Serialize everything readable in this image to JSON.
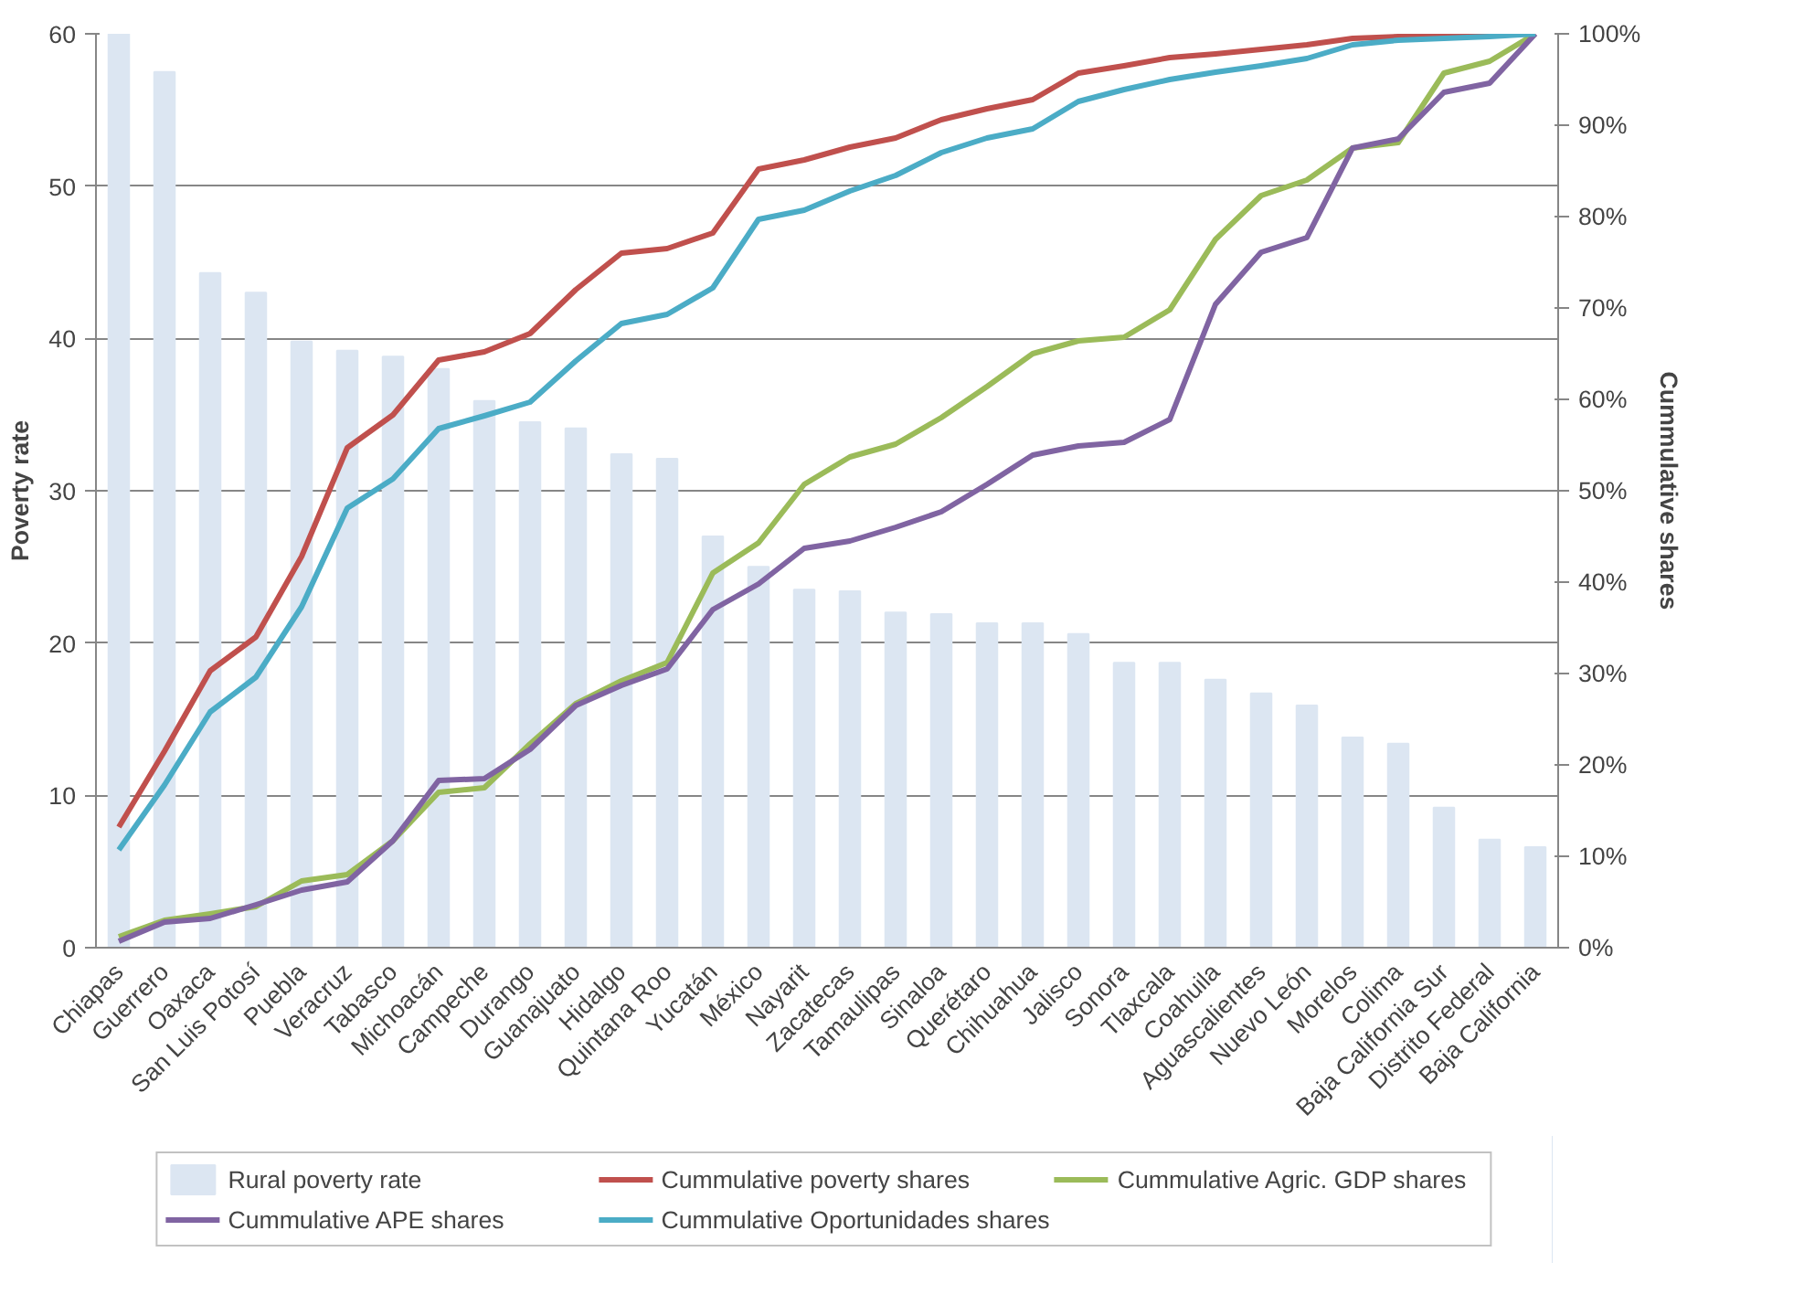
{
  "chart_data": {
    "type": "bar",
    "ylabel": "Poverty rate",
    "y2label": "Cummulative shares",
    "categories": [
      "Chiapas",
      "Guerrero",
      "Oaxaca",
      "San Luis Potosí",
      "Puebla",
      "Veracruz",
      "Tabasco",
      "Michoacán",
      "Campeche",
      "Durango",
      "Guanajuato",
      "Hidalgo",
      "Quintana Roo",
      "Yucatán",
      "México",
      "Nayarit",
      "Zacatecas",
      "Tamaulipas",
      "Sinaloa",
      "Querétaro",
      "Chihuahua",
      "Jalisco",
      "Sonora",
      "Tlaxcala",
      "Coahuila",
      "Aguascalientes",
      "Nuevo León",
      "Morelos",
      "Colima",
      "Baja California Sur",
      "Distrito Federal",
      "Baja California"
    ],
    "series": [
      {
        "name": "Rural poverty rate",
        "color": "#dce6f2",
        "values": [
          60,
          57.5,
          44.3,
          43.0,
          39.8,
          39.2,
          38.8,
          38.0,
          35.9,
          34.5,
          34.1,
          32.4,
          32.1,
          27.0,
          25.0,
          23.5,
          23.4,
          22.0,
          21.9,
          21.3,
          21.3,
          20.6,
          18.7,
          18.7,
          17.6,
          16.7,
          15.9,
          13.8,
          13.4,
          9.2,
          7.1,
          6.6
        ]
      },
      {
        "name": "Cummulative poverty shares",
        "type": "line",
        "axis": "y2",
        "color": "#c0504d",
        "values": [
          13.2,
          21.5,
          30.3,
          34,
          42.8,
          54.7,
          58.3,
          64.3,
          65.2,
          67.2,
          72,
          76,
          76.5,
          78.2,
          85.2,
          86.2,
          87.6,
          88.6,
          90.6,
          91.8,
          92.8,
          95.7,
          96.5,
          97.4,
          97.8,
          98.3,
          98.8,
          99.5,
          99.7,
          99.8,
          99.9,
          100
        ]
      },
      {
        "name": "Cummulative Agric. GDP shares",
        "type": "line",
        "axis": "y2",
        "color": "#9bbb59",
        "values": [
          1.2,
          3.0,
          3.7,
          4.5,
          7.3,
          8.0,
          11.7,
          17.0,
          17.5,
          22.3,
          26.7,
          29.2,
          31.2,
          41.0,
          44.3,
          50.7,
          53.7,
          55.1,
          58,
          61.4,
          65,
          66.4,
          66.8,
          69.8,
          77.5,
          82.3,
          84,
          87.5,
          88.1,
          95.7,
          97,
          100
        ]
      },
      {
        "name": "Cummulative APE shares",
        "type": "line",
        "axis": "y2",
        "color": "#8064a2",
        "values": [
          0.7,
          2.8,
          3.2,
          4.7,
          6.3,
          7.2,
          11.7,
          18.3,
          18.5,
          21.7,
          26.5,
          28.7,
          30.5,
          37,
          39.8,
          43.7,
          44.5,
          46,
          47.7,
          50.7,
          53.9,
          54.9,
          55.3,
          57.8,
          70.4,
          76.1,
          77.7,
          87.5,
          88.5,
          93.6,
          94.6,
          100
        ]
      },
      {
        "name": "Cummulative Oportunidades shares",
        "type": "line",
        "axis": "y2",
        "color": "#4bacc6",
        "values": [
          10.7,
          17.8,
          25.8,
          29.6,
          37.3,
          48.1,
          51.3,
          56.8,
          58.2,
          59.7,
          64.2,
          68.3,
          69.3,
          72.2,
          79.7,
          80.7,
          82.8,
          84.5,
          87,
          88.6,
          89.6,
          92.6,
          93.9,
          95,
          95.8,
          96.5,
          97.3,
          98.8,
          99.3,
          99.5,
          99.7,
          100
        ]
      }
    ],
    "ylim": [
      0,
      60
    ],
    "yticks": [
      0,
      10,
      20,
      30,
      40,
      50,
      60
    ],
    "y2lim": [
      0,
      100
    ],
    "y2ticks": [
      {
        "value": 0,
        "label": "0%"
      },
      {
        "value": 10,
        "label": "10%"
      },
      {
        "value": 20,
        "label": "20%"
      },
      {
        "value": 30,
        "label": "30%"
      },
      {
        "value": 40,
        "label": "40%"
      },
      {
        "value": 50,
        "label": "50%"
      },
      {
        "value": 60,
        "label": "60%"
      },
      {
        "value": 70,
        "label": "70%"
      },
      {
        "value": 80,
        "label": "80%"
      },
      {
        "value": 90,
        "label": "90%"
      },
      {
        "value": 100,
        "label": "100%"
      }
    ],
    "grid": "y",
    "legend": "bottom",
    "marker": "none",
    "line_style": "solid"
  }
}
